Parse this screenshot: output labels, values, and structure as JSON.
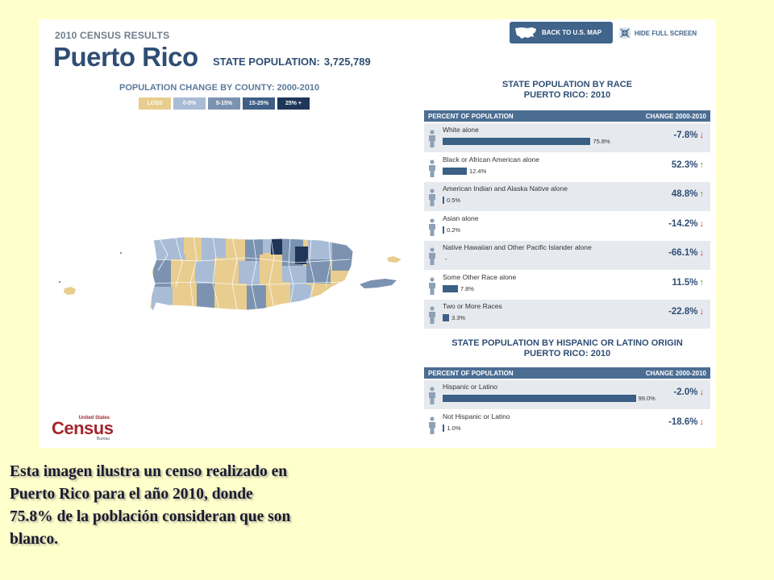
{
  "header": {
    "kicker": "2010 CENSUS RESULTS",
    "state_name": "Puerto Rico",
    "population_label": "STATE POPULATION:",
    "population_value": "3,725,789"
  },
  "buttons": {
    "back_label": "BACK TO U.S. MAP",
    "hide_label": "HIDE FULL SCREEN"
  },
  "map": {
    "title": "POPULATION CHANGE BY COUNTY: 2000-2010",
    "legend": [
      {
        "label": "LOSS",
        "color": "#e8cd8e"
      },
      {
        "label": "0-5%",
        "color": "#a9bcd6"
      },
      {
        "label": "5-15%",
        "color": "#7b93b0"
      },
      {
        "label": "15-25%",
        "color": "#3f5f86"
      },
      {
        "label": "25% +",
        "color": "#1f3658"
      }
    ]
  },
  "race": {
    "title_line1": "STATE POPULATION BY RACE",
    "title_line2": "PUERTO RICO: 2010",
    "col_left": "PERCENT OF POPULATION",
    "col_right": "CHANGE 2000-2010",
    "rows": [
      {
        "label": "White alone",
        "pct": "75.8%",
        "pct_value": 75.8,
        "change": "-7.8%",
        "direction": "down"
      },
      {
        "label": "Black or African American alone",
        "pct": "12.4%",
        "pct_value": 12.4,
        "change": "52.3%",
        "direction": "up"
      },
      {
        "label": "American Indian and Alaska Native alone",
        "pct": "0.5%",
        "pct_value": 0.5,
        "change": "48.8%",
        "direction": "up"
      },
      {
        "label": "Asian alone",
        "pct": "0.2%",
        "pct_value": 0.2,
        "change": "-14.2%",
        "direction": "down"
      },
      {
        "label": "Native Hawaiian and Other Pacific Islander alone",
        "pct": "-",
        "pct_value": 0,
        "change": "-66.1%",
        "direction": "down"
      },
      {
        "label": "Some Other Race alone",
        "pct": "7.8%",
        "pct_value": 7.8,
        "change": "11.5%",
        "direction": "up"
      },
      {
        "label": "Two or More Races",
        "pct": "3.3%",
        "pct_value": 3.3,
        "change": "-22.8%",
        "direction": "down"
      }
    ]
  },
  "hispanic": {
    "title_line1": "STATE POPULATION BY HISPANIC OR LATINO ORIGIN",
    "title_line2": "PUERTO RICO: 2010",
    "col_left": "PERCENT OF POPULATION",
    "col_right": "CHANGE 2000-2010",
    "rows": [
      {
        "label": "Hispanic or Latino",
        "pct": "99.0%",
        "pct_value": 99.0,
        "change": "-2.0%",
        "direction": "down"
      },
      {
        "label": "Not Hispanic or Latino",
        "pct": "1.0%",
        "pct_value": 1.0,
        "change": "-18.6%",
        "direction": "down"
      }
    ]
  },
  "logo": {
    "small": "United States",
    "big": "Census",
    "bureau": "Bureau"
  },
  "caption": "Esta imagen ilustra un censo realizado en Puerto Rico para el año 2010, donde 75.8% de la población consideran que son blanco.",
  "icons": {
    "us_map": "us-map-icon",
    "hide": "collapse-arrows-icon",
    "person": "person-icon",
    "arrow_up": "arrow-up-icon",
    "arrow_down": "arrow-down-icon"
  }
}
